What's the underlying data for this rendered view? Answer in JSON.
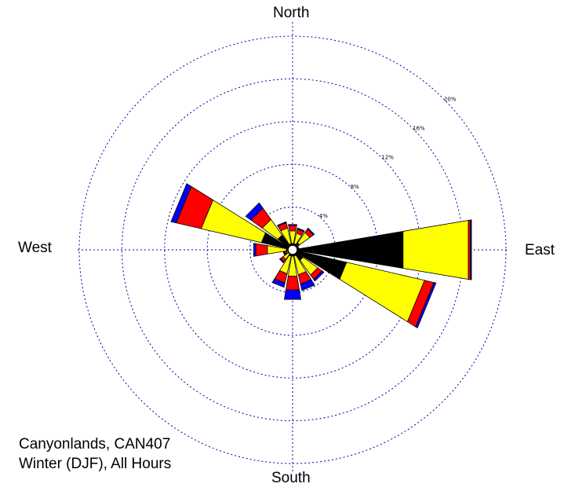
{
  "labels": {
    "north": "North",
    "south": "South",
    "east": "East",
    "west": "West"
  },
  "caption": {
    "line1": "Canyonlands, CAN407",
    "line2": "Winter (DJF), All Hours"
  },
  "chart_data": {
    "type": "wind-rose",
    "unit": "%",
    "rings": [
      4,
      8,
      12,
      16,
      20
    ],
    "ring_labels": [
      "4%",
      "8%",
      "12%",
      "16%",
      "20%"
    ],
    "r_max": 20,
    "grid": true,
    "speed_class_colors": [
      "#000000",
      "#ffff00",
      "#ff0000",
      "#0000ff"
    ],
    "sectors": [
      {
        "direction_deg": 0,
        "segments": [
          0.6,
          1.2,
          0.5,
          0.1
        ]
      },
      {
        "direction_deg": 22.5,
        "segments": [
          0.6,
          1.0,
          0.4,
          0.1
        ]
      },
      {
        "direction_deg": 45,
        "segments": [
          0.8,
          1.2,
          0.4,
          0.1
        ]
      },
      {
        "direction_deg": 67.5,
        "segments": [
          0.3,
          0.2,
          0.1,
          0.0
        ]
      },
      {
        "direction_deg": 90,
        "segments": [
          10.5,
          6.2,
          0.2,
          0.1
        ]
      },
      {
        "direction_deg": 112.5,
        "segments": [
          5.2,
          7.5,
          0.9,
          0.2
        ]
      },
      {
        "direction_deg": 135,
        "segments": [
          1.2,
          1.7,
          0.5,
          0.2
        ]
      },
      {
        "direction_deg": 157.5,
        "segments": [
          0.6,
          1.8,
          0.9,
          0.6
        ]
      },
      {
        "direction_deg": 180,
        "segments": [
          0.6,
          1.9,
          1.3,
          0.9
        ]
      },
      {
        "direction_deg": 202.5,
        "segments": [
          0.6,
          1.7,
          0.9,
          0.4
        ]
      },
      {
        "direction_deg": 225,
        "segments": [
          0.4,
          0.7,
          0.3,
          0.1
        ]
      },
      {
        "direction_deg": 247.5,
        "segments": [
          0.3,
          0.3,
          0.2,
          0.1
        ]
      },
      {
        "direction_deg": 270,
        "segments": [
          0.6,
          1.8,
          1.1,
          0.2
        ]
      },
      {
        "direction_deg": 292.5,
        "segments": [
          3.0,
          5.8,
          2.4,
          0.5
        ]
      },
      {
        "direction_deg": 315,
        "segments": [
          1.7,
          1.8,
          1.3,
          0.6
        ]
      },
      {
        "direction_deg": 337.5,
        "segments": [
          0.6,
          1.5,
          0.5,
          0.1
        ]
      }
    ]
  }
}
